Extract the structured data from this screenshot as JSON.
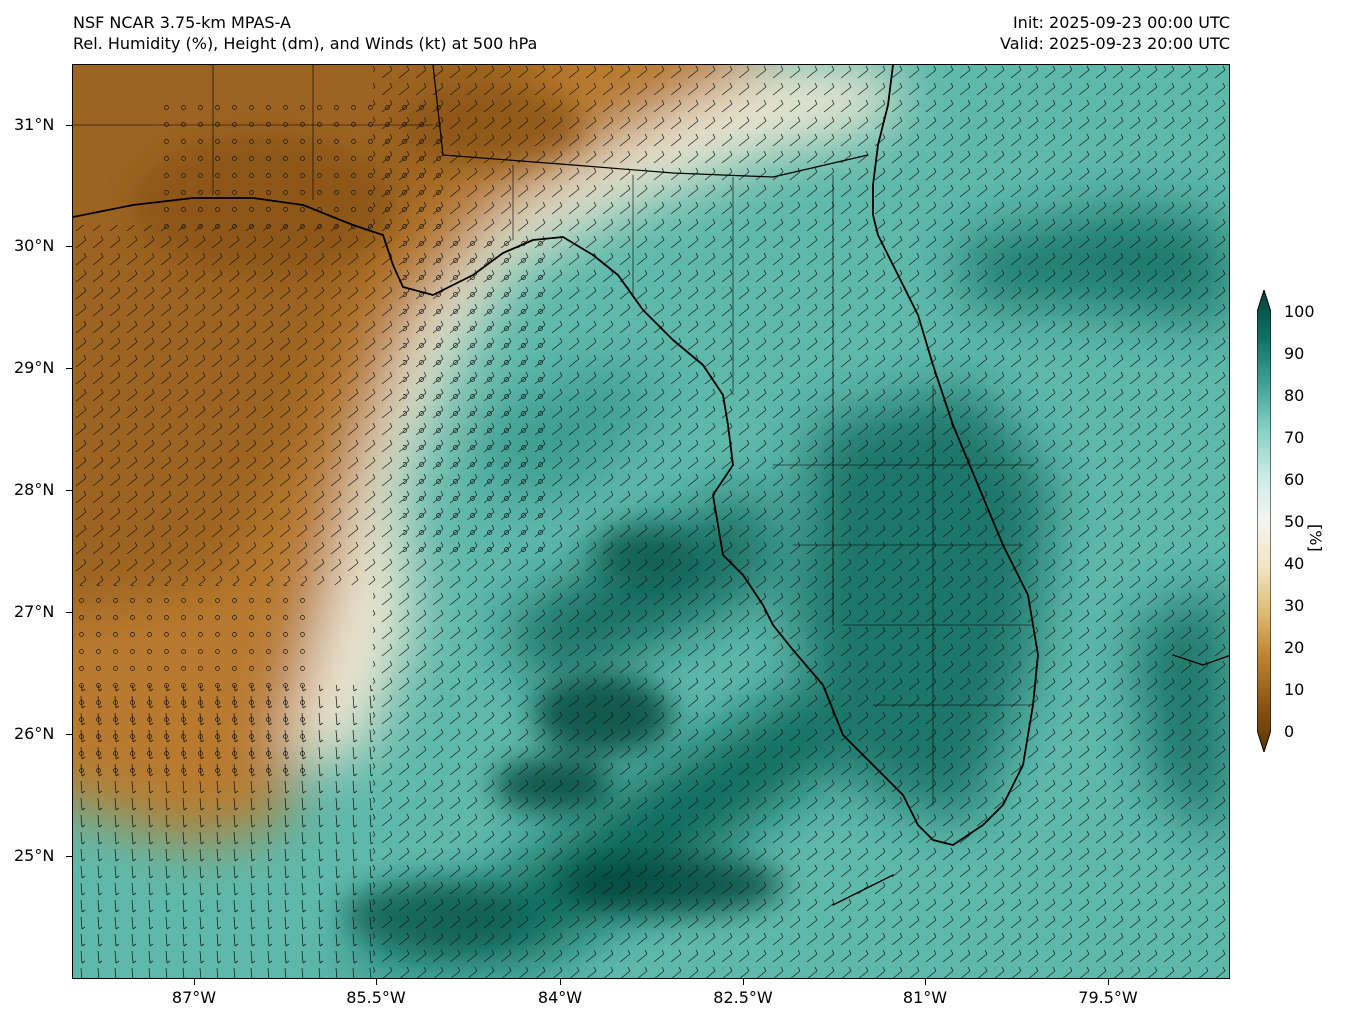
{
  "header": {
    "model": "NSF NCAR 3.75-km MPAS-A",
    "fields": "Rel. Humidity (%), Height (dm), and Winds (kt) at 500 hPa",
    "init": "Init: 2025-09-23 00:00 UTC",
    "valid": "Valid: 2025-09-23 20:00 UTC"
  },
  "axes": {
    "lat_labels": [
      "31°N",
      "30°N",
      "29°N",
      "28°N",
      "27°N",
      "26°N",
      "25°N"
    ],
    "lon_labels": [
      "87°W",
      "85.5°W",
      "84°W",
      "82.5°W",
      "81°W",
      "79.5°W"
    ]
  },
  "colorbar": {
    "ticks": [
      "0",
      "10",
      "20",
      "30",
      "40",
      "50",
      "60",
      "70",
      "80",
      "90",
      "100"
    ],
    "unit": "[%]",
    "colors": [
      "#5a3304",
      "#8c5413",
      "#bb802f",
      "#dcbb72",
      "#f2e5c3",
      "#f4f4f1",
      "#c9ebe5",
      "#84cfc3",
      "#3f9f93",
      "#0f6f63",
      "#00443b"
    ]
  },
  "map": {
    "region": "Florida and Gulf of Mexico",
    "dry_color": "#b87a2e",
    "moist_color": "#15705f"
  }
}
